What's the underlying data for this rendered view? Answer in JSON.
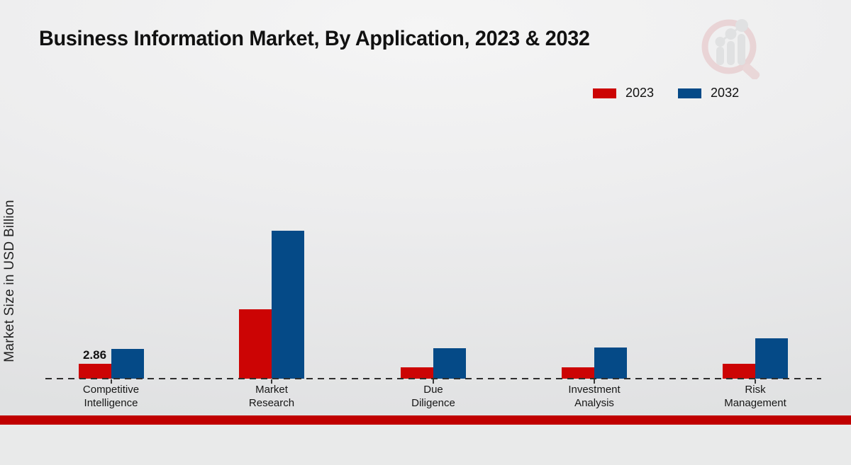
{
  "title": "Business Information Market, By Application, 2023 & 2032",
  "y_axis_label": "Market Size in USD Billion",
  "legend": {
    "items": [
      {
        "label": "2023",
        "color": "#cc0404"
      },
      {
        "label": "2032",
        "color": "#054a87"
      }
    ]
  },
  "footer": {
    "accent_color": "#c00000"
  },
  "logo_name": "market-research-future-watermark",
  "chart_data": {
    "type": "bar",
    "title": "Business Information Market, By Application, 2023 & 2032",
    "xlabel": "",
    "ylabel": "Market Size in USD Billion",
    "categories": [
      "Competitive\nIntelligence",
      "Market\nResearch",
      "Due\nDiligence",
      "Investment\nAnalysis",
      "Risk\nManagement"
    ],
    "series": [
      {
        "name": "2023",
        "color": "#cc0404",
        "values": [
          2.86,
          13.4,
          2.2,
          2.2,
          2.9
        ],
        "data_labels": [
          "2.86",
          "",
          "",
          "",
          ""
        ]
      },
      {
        "name": "2032",
        "color": "#054a87",
        "values": [
          5.7,
          28.5,
          5.9,
          6.0,
          7.8
        ],
        "data_labels": [
          "",
          "",
          "",
          "",
          ""
        ]
      }
    ],
    "ylim": [
      0,
      30
    ],
    "grid": false,
    "y_ticks_visible": false,
    "legend_position": "top-right",
    "baseline_style": "dashed"
  }
}
